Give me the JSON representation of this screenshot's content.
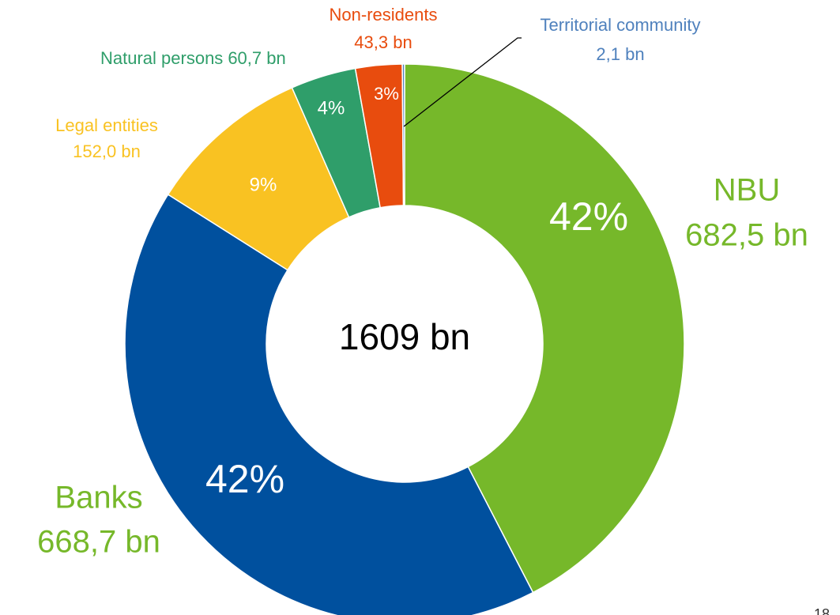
{
  "chart_data": {
    "type": "pie",
    "center_label": "1609 bn",
    "categories": [
      "NBU",
      "Banks",
      "Legal entities",
      "Natural persons",
      "Non-residents",
      "Territorial community"
    ],
    "values": [
      682.5,
      668.7,
      152.0,
      60.7,
      43.3,
      2.1
    ],
    "value_labels": [
      "682,5 bn",
      "668,7 bn",
      "152,0 bn",
      "60,7 bn",
      "43,3 bn",
      "2,1 bn"
    ],
    "percents": [
      42,
      42,
      9,
      4,
      3,
      null
    ],
    "percent_labels": [
      "42%",
      "42%",
      "9%",
      "4%",
      "3%",
      null
    ],
    "colors": [
      "#76b82a",
      "#00509e",
      "#f9c222",
      "#2f9e6a",
      "#e84c0e",
      "#4f81bd"
    ],
    "label_colors": [
      "#76b82a",
      "#76b82a",
      "#f9c222",
      "#2f9e6a",
      "#e84c0e",
      "#4f81bd"
    ],
    "page_number": "18"
  }
}
